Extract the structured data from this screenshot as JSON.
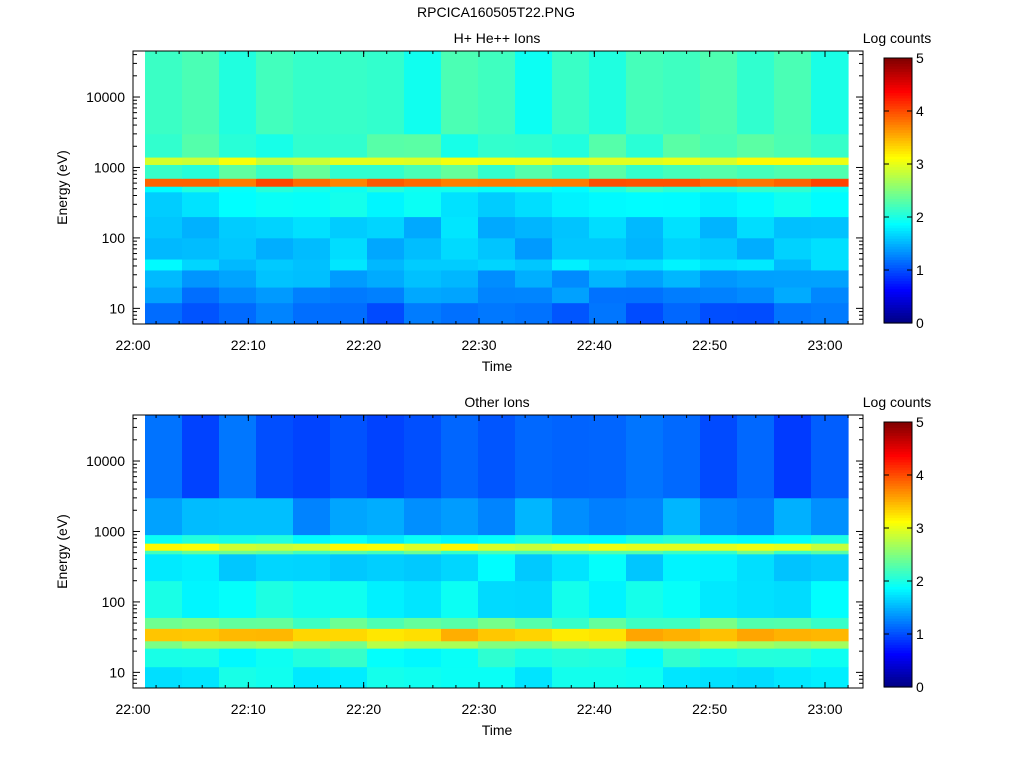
{
  "page_title": "RPCICA160505T22.PNG",
  "chart_data": [
    {
      "type": "heatmap",
      "title": "H+ He++ Ions",
      "xlabel": "Time",
      "ylabel": "Energy (eV)",
      "x_ticks": [
        "22:00",
        "22:10",
        "22:20",
        "22:30",
        "22:40",
        "22:50",
        "23:00"
      ],
      "x_range": [
        "22:00",
        "23:03"
      ],
      "y_scale": "log",
      "y_ticks": [
        10,
        100,
        1000,
        10000
      ],
      "y_tick_labels": [
        "10",
        "100",
        "1000",
        "10000"
      ],
      "y_range": [
        6,
        45000
      ],
      "colorbar": {
        "label": "Log counts",
        "range": [
          0,
          5
        ],
        "ticks": [
          "0",
          "1",
          "2",
          "3",
          "4",
          "5"
        ]
      },
      "time_columns": 19,
      "bands": [
        {
          "energy_min": 6,
          "energy_max": 12,
          "log_counts": 1.1
        },
        {
          "energy_min": 12,
          "energy_max": 20,
          "log_counts": 1.3
        },
        {
          "energy_min": 20,
          "energy_max": 35,
          "log_counts": 1.45
        },
        {
          "energy_min": 35,
          "energy_max": 50,
          "log_counts": 1.7
        },
        {
          "energy_min": 50,
          "energy_max": 100,
          "log_counts": 1.55
        },
        {
          "energy_min": 100,
          "energy_max": 200,
          "log_counts": 1.6
        },
        {
          "energy_min": 200,
          "energy_max": 450,
          "log_counts": 1.8
        },
        {
          "energy_min": 450,
          "energy_max": 540,
          "log_counts": 2.0
        },
        {
          "energy_min": 540,
          "energy_max": 700,
          "log_counts": 3.9
        },
        {
          "energy_min": 700,
          "energy_max": 1100,
          "log_counts": 2.2
        },
        {
          "energy_min": 1100,
          "energy_max": 1400,
          "log_counts": 3.0
        },
        {
          "energy_min": 1400,
          "energy_max": 3000,
          "log_counts": 2.15
        },
        {
          "energy_min": 3000,
          "energy_max": 45000,
          "log_counts": 2.1
        }
      ]
    },
    {
      "type": "heatmap",
      "title": "Other Ions",
      "xlabel": "Time",
      "ylabel": "Energy (eV)",
      "x_ticks": [
        "22:00",
        "22:10",
        "22:20",
        "22:30",
        "22:40",
        "22:50",
        "23:00"
      ],
      "x_range": [
        "22:00",
        "23:03"
      ],
      "y_scale": "log",
      "y_ticks": [
        10,
        100,
        1000,
        10000
      ],
      "y_tick_labels": [
        "10",
        "100",
        "1000",
        "10000"
      ],
      "y_range": [
        6,
        45000
      ],
      "colorbar": {
        "label": "Log counts",
        "range": [
          0,
          5
        ],
        "ticks": [
          "0",
          "1",
          "2",
          "3",
          "4",
          "5"
        ]
      },
      "time_columns": 19,
      "bands": [
        {
          "energy_min": 6,
          "energy_max": 12,
          "log_counts": 1.85
        },
        {
          "energy_min": 12,
          "energy_max": 22,
          "log_counts": 2.0
        },
        {
          "energy_min": 22,
          "energy_max": 28,
          "log_counts": 2.6
        },
        {
          "energy_min": 28,
          "energy_max": 42,
          "log_counts": 3.4
        },
        {
          "energy_min": 42,
          "energy_max": 60,
          "log_counts": 2.3
        },
        {
          "energy_min": 60,
          "energy_max": 200,
          "log_counts": 1.85
        },
        {
          "energy_min": 200,
          "energy_max": 480,
          "log_counts": 1.75
        },
        {
          "energy_min": 480,
          "energy_max": 540,
          "log_counts": 2.3
        },
        {
          "energy_min": 540,
          "energy_max": 680,
          "log_counts": 3.0
        },
        {
          "energy_min": 680,
          "energy_max": 900,
          "log_counts": 1.9
        },
        {
          "energy_min": 900,
          "energy_max": 3000,
          "log_counts": 1.4
        },
        {
          "energy_min": 3000,
          "energy_max": 45000,
          "log_counts": 1.05
        }
      ]
    }
  ]
}
